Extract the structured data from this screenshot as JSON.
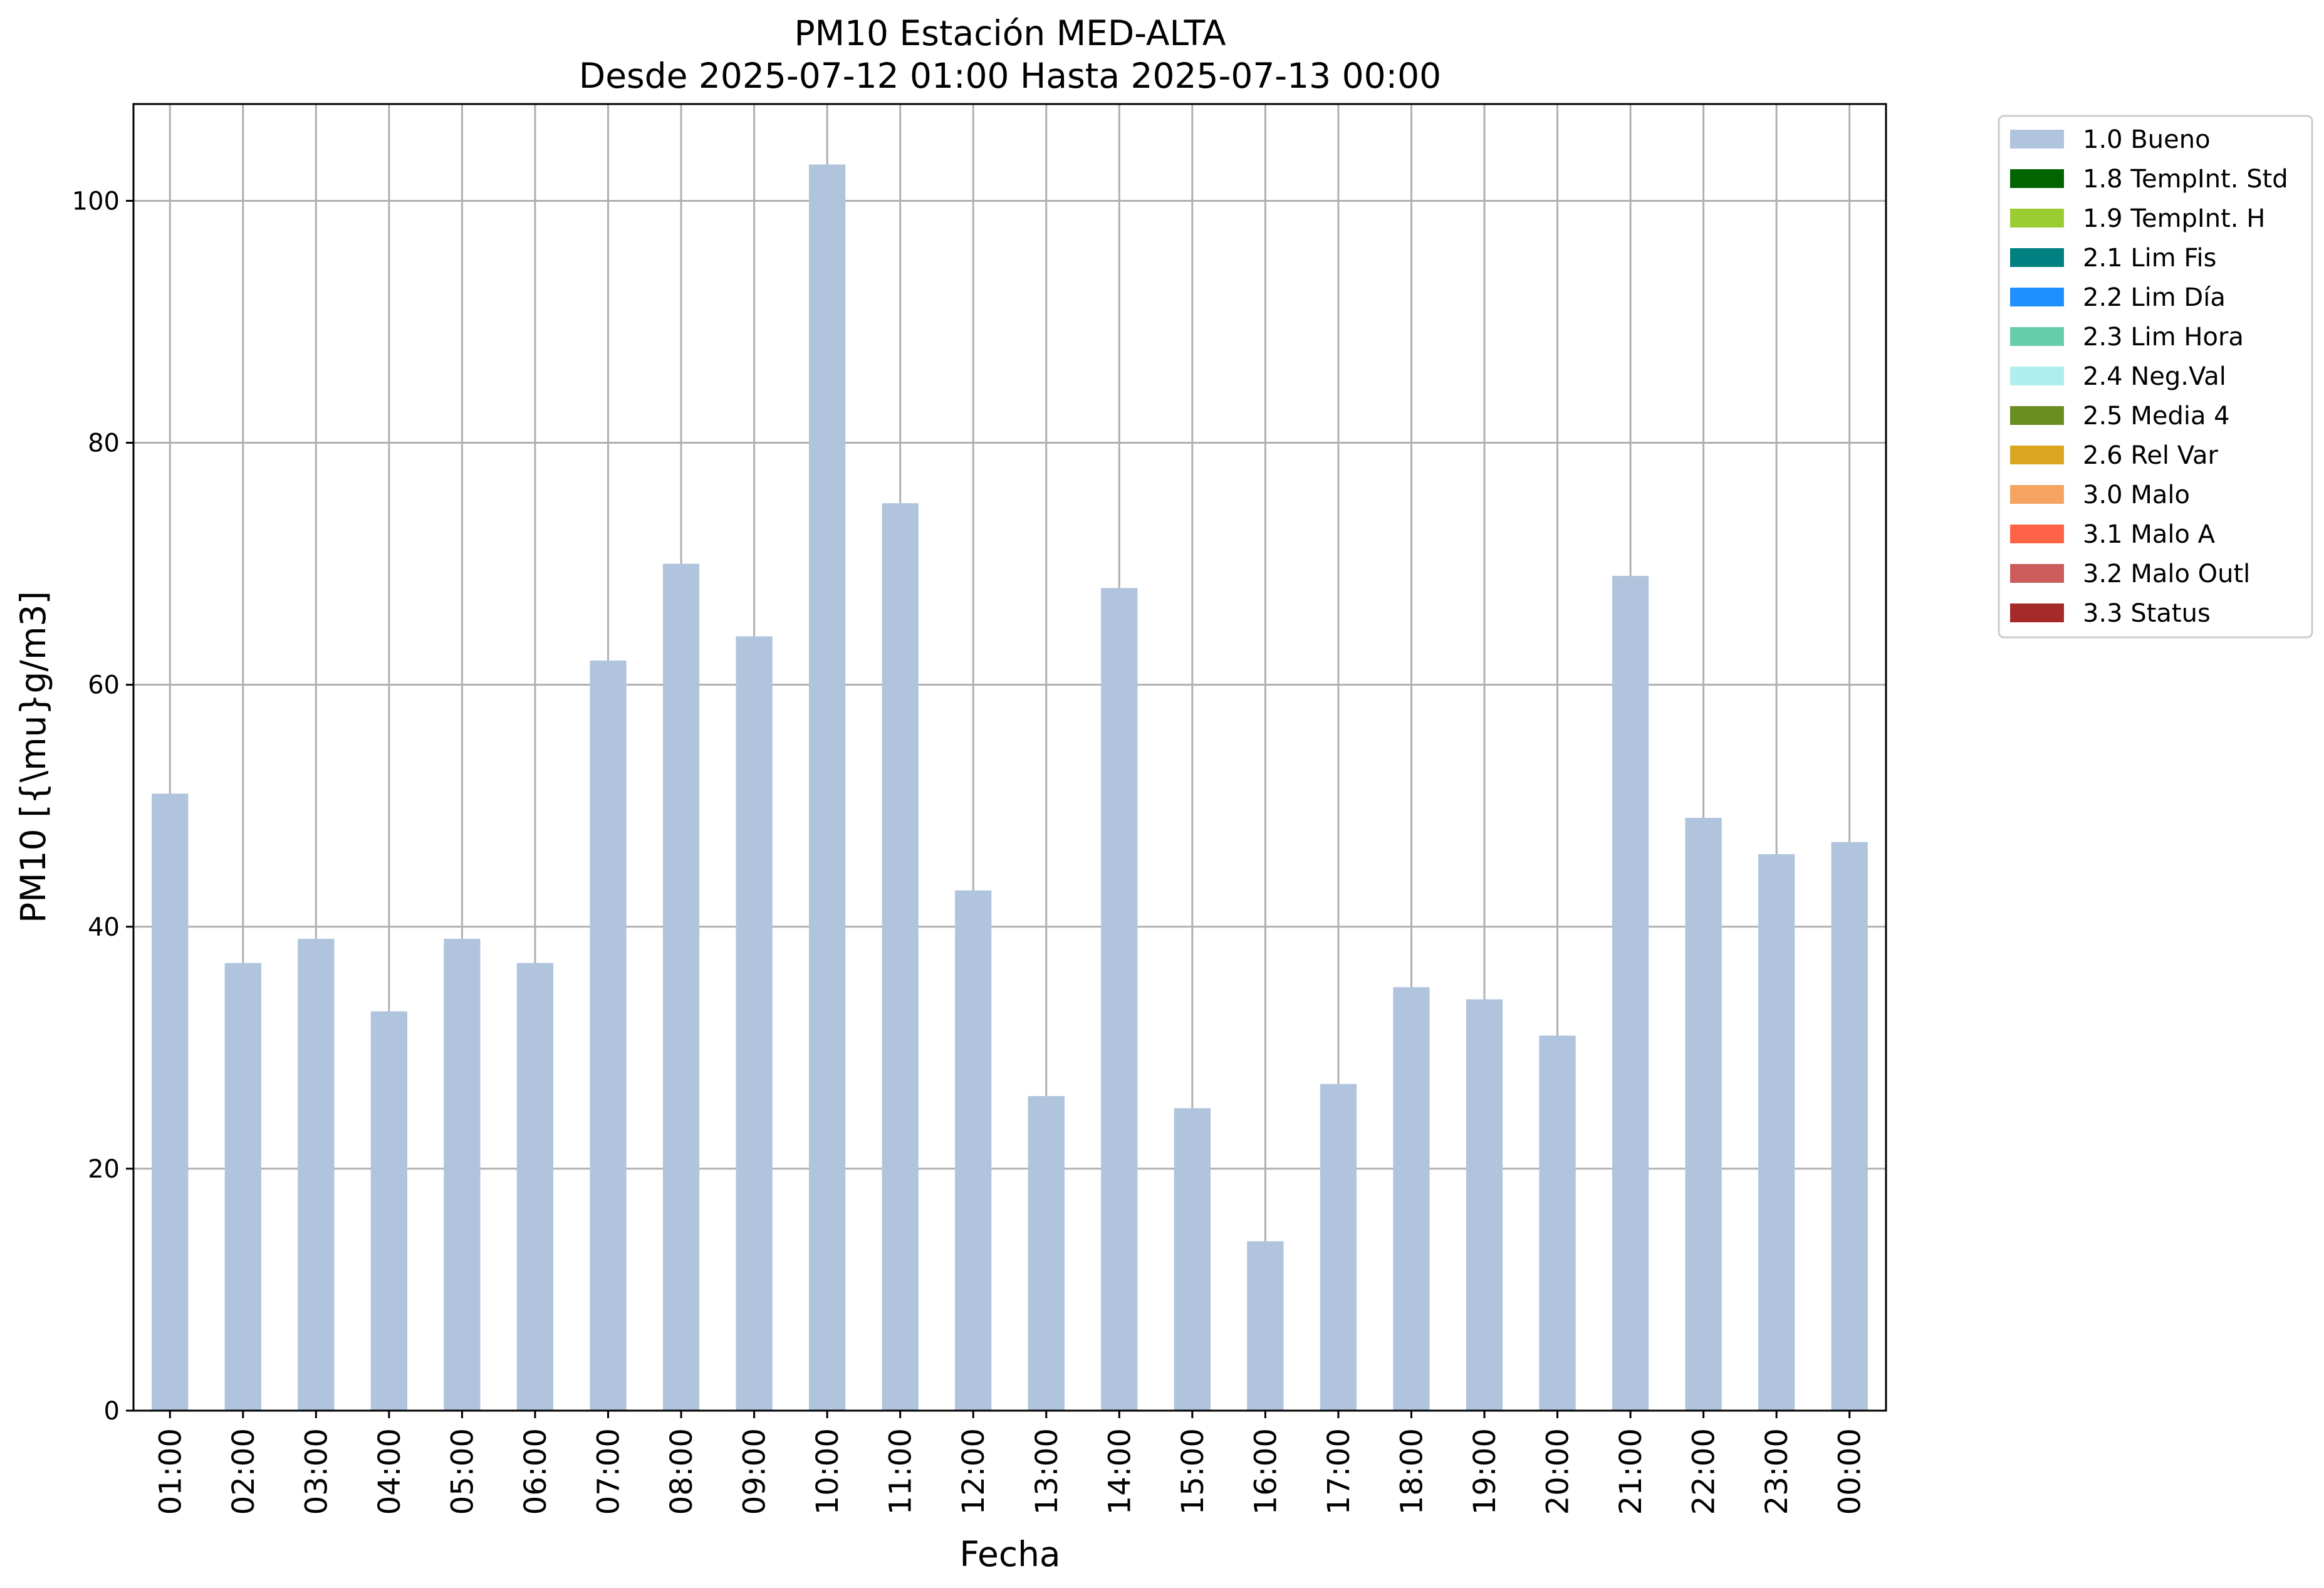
{
  "chart_data": {
    "type": "bar",
    "title": "PM10 Estación MED-ALTA",
    "subtitle": "Desde 2025-07-12 01:00 Hasta 2025-07-13 00:00",
    "xlabel": "Fecha",
    "ylabel": "PM10 [{\\mu}g/m3]",
    "categories": [
      "01:00",
      "02:00",
      "03:00",
      "04:00",
      "05:00",
      "06:00",
      "07:00",
      "08:00",
      "09:00",
      "10:00",
      "11:00",
      "12:00",
      "13:00",
      "14:00",
      "15:00",
      "16:00",
      "17:00",
      "18:00",
      "19:00",
      "20:00",
      "21:00",
      "22:00",
      "23:00",
      "00:00"
    ],
    "series": [
      {
        "name": "1.0 Bueno",
        "color": "#b0c4de",
        "values": [
          51,
          37,
          39,
          33,
          39,
          37,
          62,
          70,
          64,
          103,
          75,
          43,
          26,
          68,
          25,
          14,
          27,
          35,
          34,
          31,
          69,
          49,
          46,
          47
        ]
      }
    ],
    "ylim": [
      0,
      108
    ],
    "yticks": [
      0,
      20,
      40,
      60,
      80,
      100
    ],
    "grid": true,
    "legend_placement": "outside-right",
    "legend": [
      {
        "label": "1.0 Bueno",
        "color": "#b0c4de"
      },
      {
        "label": "1.8 TempInt. Std",
        "color": "#006400"
      },
      {
        "label": "1.9 TempInt. H",
        "color": "#9acd32"
      },
      {
        "label": "2.1 Lim Fis",
        "color": "#008080"
      },
      {
        "label": "2.2 Lim Día",
        "color": "#1e90ff"
      },
      {
        "label": "2.3 Lim Hora",
        "color": "#66cdaa"
      },
      {
        "label": "2.4 Neg.Val",
        "color": "#afeeee"
      },
      {
        "label": "2.5 Media 4",
        "color": "#6b8e23"
      },
      {
        "label": "2.6 Rel Var",
        "color": "#daa520"
      },
      {
        "label": "3.0 Malo",
        "color": "#f4a460"
      },
      {
        "label": "3.1 Malo A",
        "color": "#ff6347"
      },
      {
        "label": "3.2 Malo Outl",
        "color": "#cd5c5c"
      },
      {
        "label": "3.3 Status",
        "color": "#a52a2a"
      }
    ]
  }
}
